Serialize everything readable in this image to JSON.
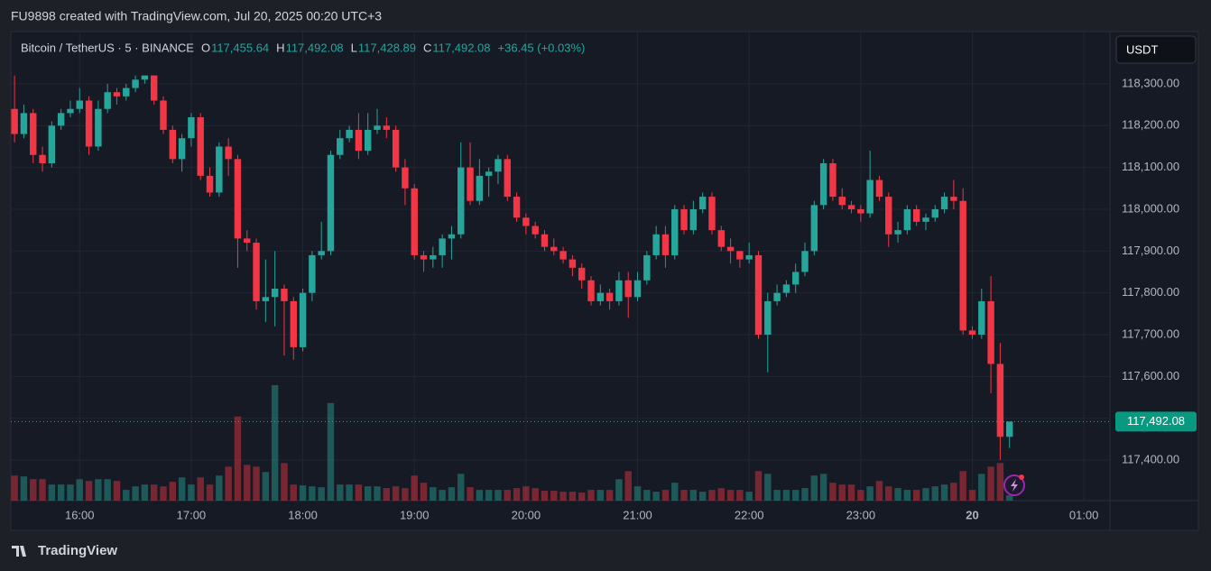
{
  "header": {
    "author_line": "FU9898 created with TradingView.com, Jul 20, 2025 00:20 UTC+3",
    "brand": "TradingView"
  },
  "chart_data": {
    "type": "candlestick",
    "symbol": "Bitcoin / TetherUS · 5 · BINANCE",
    "ohlc_legend": [
      {
        "key": "O",
        "value": 117455.64,
        "label": "117,455.64"
      },
      {
        "key": "H",
        "value": 117492.08,
        "label": "117,492.08"
      },
      {
        "key": "L",
        "value": 117428.89,
        "label": "117,428.89"
      },
      {
        "key": "C",
        "value": 117492.08,
        "label": "117,492.08"
      }
    ],
    "change": "+36.45 (+0.03%)",
    "currency": "USDT",
    "up_color": "#26a69a",
    "down_color": "#f23645",
    "grid": true,
    "open": [
      118240,
      118180,
      118230,
      118130,
      118110,
      118200,
      118230,
      118240,
      118260,
      118150,
      118240,
      118280,
      118270,
      118290,
      118310,
      118320,
      118260,
      118190,
      118120,
      118170,
      118220,
      118080,
      118040,
      118150,
      118120,
      117930,
      117920,
      117780,
      117790,
      117810,
      117780,
      117670,
      117800,
      117890,
      117900,
      118130,
      118170,
      118190,
      118140,
      118190,
      118200,
      118190,
      118100,
      118050,
      117890,
      117880,
      117890,
      117930,
      117940,
      118100,
      118020,
      118080,
      118090,
      118120,
      118030,
      117980,
      117960,
      117940,
      117910,
      117900,
      117880,
      117860,
      117830,
      117780,
      117800,
      117780,
      117830,
      117790,
      117830,
      117890,
      117940,
      117890,
      118000,
      117950,
      118000,
      118030,
      117950,
      117910,
      117900,
      117880,
      117890,
      117700,
      117780,
      117800,
      117820,
      117850,
      117900,
      118010,
      118110,
      118030,
      118010,
      118000,
      117990,
      118070,
      118030,
      117940,
      117950,
      118000,
      117970,
      117980,
      118000,
      118030,
      118020,
      117710,
      117700,
      117780,
      117630,
      117455.64
    ],
    "high": [
      118320,
      118250,
      118240,
      118150,
      118210,
      118240,
      118260,
      118290,
      118270,
      118260,
      118300,
      118290,
      118300,
      118320,
      118320,
      118320,
      118270,
      118200,
      118180,
      118230,
      118230,
      118100,
      118160,
      118170,
      118130,
      117950,
      117930,
      117880,
      117900,
      117820,
      117790,
      117810,
      117900,
      117970,
      118140,
      118190,
      118200,
      118230,
      118230,
      118240,
      118220,
      118200,
      118120,
      118060,
      117900,
      117910,
      117940,
      117960,
      118160,
      118160,
      118120,
      118100,
      118130,
      118130,
      118040,
      117990,
      117970,
      117950,
      117930,
      117910,
      117890,
      117870,
      117840,
      117820,
      117810,
      117850,
      117850,
      117850,
      117900,
      117960,
      117960,
      118010,
      118010,
      118020,
      118040,
      118040,
      117960,
      117930,
      117900,
      117920,
      117900,
      117800,
      117820,
      117830,
      117870,
      117920,
      118020,
      118120,
      118120,
      118050,
      118020,
      118010,
      118140,
      118080,
      118040,
      117970,
      118010,
      118010,
      117990,
      118010,
      118040,
      118070,
      118050,
      117720,
      117810,
      117840,
      117680,
      117492.08
    ],
    "low": [
      118160,
      118170,
      118110,
      118090,
      118100,
      118190,
      118220,
      118230,
      118130,
      118140,
      118230,
      118250,
      118260,
      118280,
      118300,
      118250,
      118180,
      118110,
      118090,
      118150,
      118070,
      118030,
      118030,
      118080,
      117860,
      117900,
      117760,
      117730,
      117720,
      117650,
      117640,
      117660,
      117780,
      117880,
      117890,
      118120,
      118160,
      118120,
      118130,
      118180,
      118170,
      118090,
      118010,
      117880,
      117850,
      117860,
      117860,
      117880,
      117930,
      118010,
      118010,
      118030,
      118060,
      118020,
      117970,
      117940,
      117930,
      117900,
      117890,
      117870,
      117840,
      117810,
      117770,
      117770,
      117760,
      117770,
      117740,
      117780,
      117820,
      117880,
      117860,
      117880,
      117940,
      117940,
      117990,
      117940,
      117900,
      117870,
      117860,
      117870,
      117690,
      117610,
      117770,
      117790,
      117800,
      117840,
      117890,
      118000,
      118020,
      118000,
      117990,
      117970,
      117980,
      118020,
      117910,
      117920,
      117940,
      117960,
      117950,
      117970,
      117990,
      118000,
      117700,
      117690,
      117690,
      117560,
      117400,
      117428.89
    ],
    "close": [
      118180,
      118230,
      118130,
      118110,
      118200,
      118230,
      118240,
      118260,
      118150,
      118240,
      118280,
      118270,
      118290,
      118310,
      118320,
      118260,
      118190,
      118120,
      118170,
      118220,
      118080,
      118040,
      118150,
      118120,
      117930,
      117920,
      117780,
      117790,
      117810,
      117780,
      117670,
      117800,
      117890,
      117900,
      118130,
      118170,
      118190,
      118140,
      118190,
      118200,
      118190,
      118100,
      118050,
      117890,
      117880,
      117890,
      117930,
      117940,
      118100,
      118020,
      118080,
      118090,
      118120,
      118030,
      117980,
      117960,
      117940,
      117910,
      117900,
      117880,
      117860,
      117830,
      117780,
      117800,
      117780,
      117830,
      117790,
      117830,
      117890,
      117940,
      117890,
      118000,
      117950,
      118000,
      118030,
      117950,
      117910,
      117900,
      117880,
      117890,
      117700,
      117780,
      117800,
      117820,
      117850,
      117900,
      118010,
      118110,
      118030,
      118010,
      118000,
      117990,
      118070,
      118030,
      117940,
      117950,
      118000,
      117970,
      117980,
      118000,
      118030,
      118020,
      117710,
      117700,
      117780,
      117630,
      117455.64,
      117492.08
    ],
    "volume": [
      28,
      27,
      24,
      24,
      18,
      18,
      18,
      24,
      22,
      24,
      24,
      22,
      12,
      16,
      18,
      18,
      16,
      21,
      26,
      18,
      26,
      18,
      28,
      38,
      94,
      40,
      38,
      32,
      129,
      42,
      18,
      17,
      16,
      15,
      109,
      18,
      18,
      18,
      16,
      16,
      14,
      16,
      14,
      28,
      20,
      15,
      12,
      15,
      30,
      15,
      12,
      12,
      12,
      12,
      14,
      16,
      14,
      11,
      11,
      10,
      10,
      9,
      12,
      12,
      12,
      24,
      33,
      16,
      12,
      10,
      12,
      20,
      12,
      12,
      10,
      12,
      14,
      12,
      12,
      10,
      33,
      30,
      12,
      12,
      12,
      14,
      28,
      30,
      20,
      18,
      18,
      12,
      16,
      22,
      16,
      14,
      12,
      12,
      14,
      16,
      18,
      20,
      33,
      12,
      30,
      38,
      42,
      6
    ],
    "vlim": [
      0,
      130
    ],
    "ylim": [
      117303,
      118425
    ],
    "yticks": [
      {
        "value": 117400,
        "label": "117,400.00"
      },
      {
        "value": 117500,
        "label": "117,500.00"
      },
      {
        "value": 117600,
        "label": "117,600.00"
      },
      {
        "value": 117700,
        "label": "117,700.00"
      },
      {
        "value": 117800,
        "label": "117,800.00"
      },
      {
        "value": 117900,
        "label": "117,900.00"
      },
      {
        "value": 118000,
        "label": "118,000.00"
      },
      {
        "value": 118100,
        "label": "118,100.00"
      },
      {
        "value": 118200,
        "label": "118,200.00"
      },
      {
        "value": 118300,
        "label": "118,300.00"
      }
    ],
    "xlim": [
      -0.4,
      117.8
    ],
    "xticks": [
      {
        "value": 7,
        "label": "16:00"
      },
      {
        "value": 19,
        "label": "17:00"
      },
      {
        "value": 31,
        "label": "18:00"
      },
      {
        "value": 43,
        "label": "19:00"
      },
      {
        "value": 55,
        "label": "20:00"
      },
      {
        "value": 67,
        "label": "21:00"
      },
      {
        "value": 79,
        "label": "22:00"
      },
      {
        "value": 91,
        "label": "23:00"
      },
      {
        "value": 103,
        "label": "20"
      },
      {
        "value": 115,
        "label": "01:00"
      }
    ],
    "last_price": {
      "value": 117492.08,
      "label": "117,492.08"
    }
  }
}
